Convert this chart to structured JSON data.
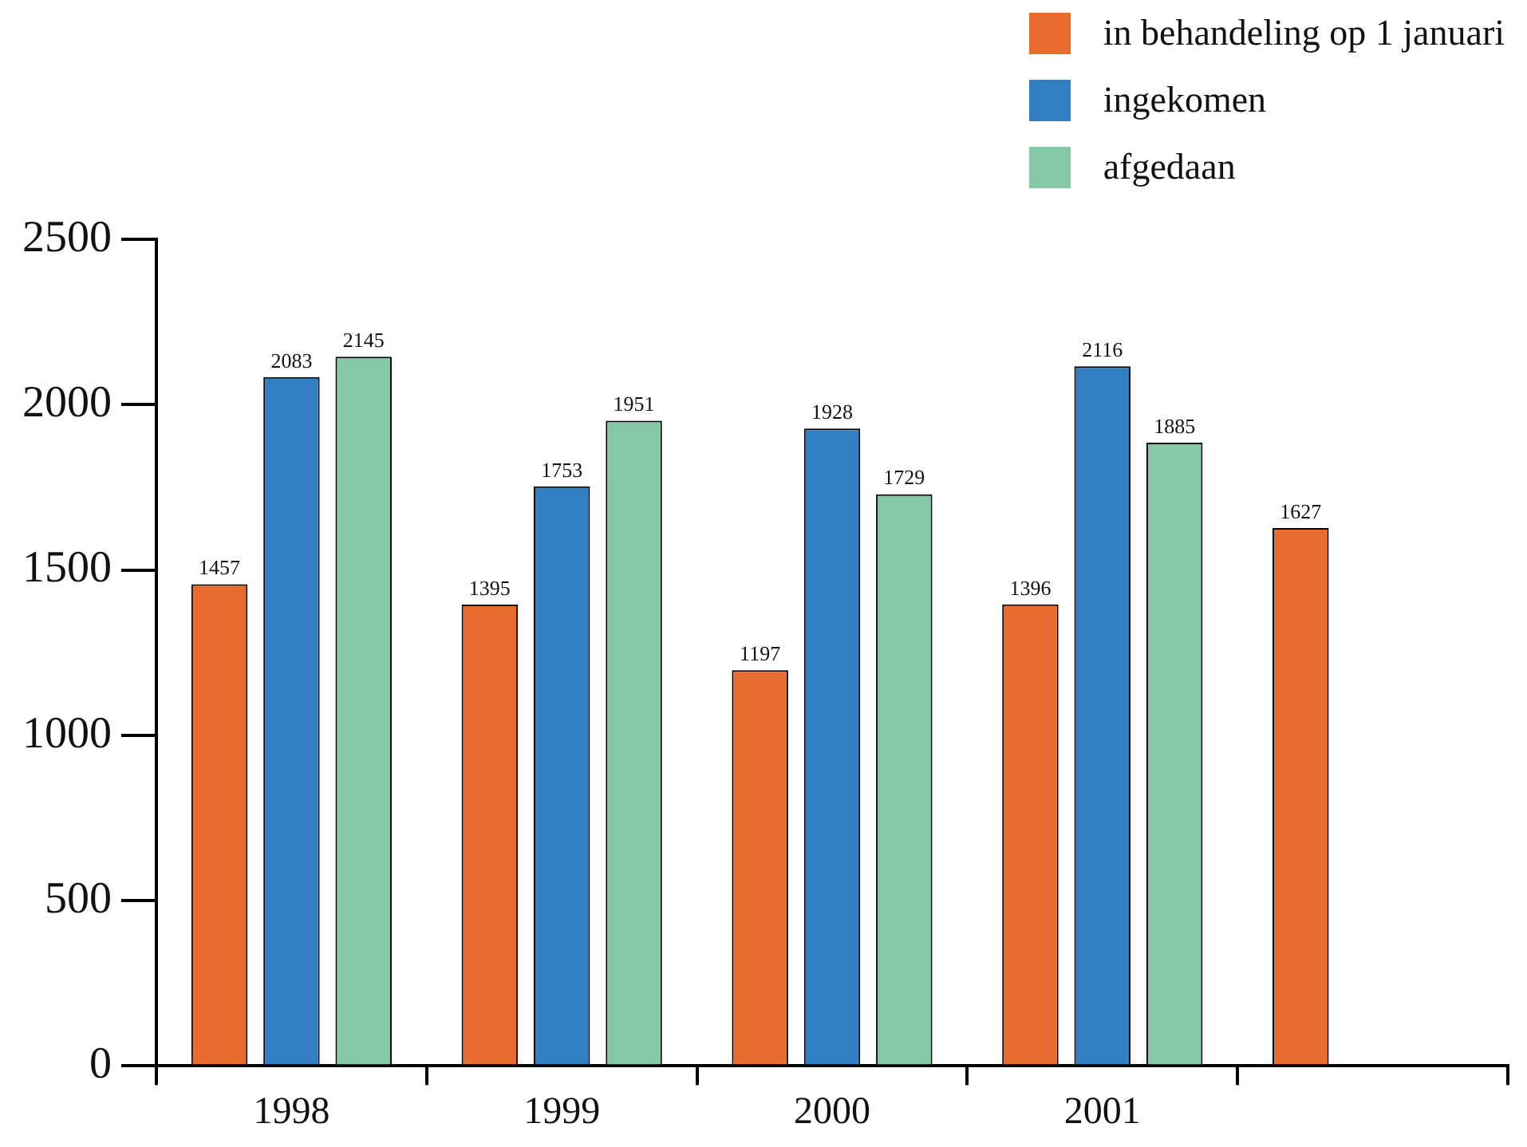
{
  "chart_data": {
    "type": "bar",
    "categories": [
      "1998",
      "1999",
      "2000",
      "2001",
      null
    ],
    "series": [
      {
        "name": "in behandeling op 1 januari",
        "color": "#e86c2f",
        "values": [
          1457,
          1395,
          1197,
          1396,
          1627
        ]
      },
      {
        "name": "ingekomen",
        "color": "#3280c3",
        "values": [
          2083,
          1753,
          1928,
          2116,
          null
        ]
      },
      {
        "name": "afgedaan",
        "color": "#85c8a5",
        "values": [
          2145,
          1951,
          1729,
          1885,
          null
        ]
      }
    ],
    "ylim": [
      0,
      2500
    ],
    "yticks": [
      0,
      500,
      1000,
      1500,
      2000,
      2500
    ],
    "grid": false,
    "legend": "top right",
    "data_labels": true
  }
}
